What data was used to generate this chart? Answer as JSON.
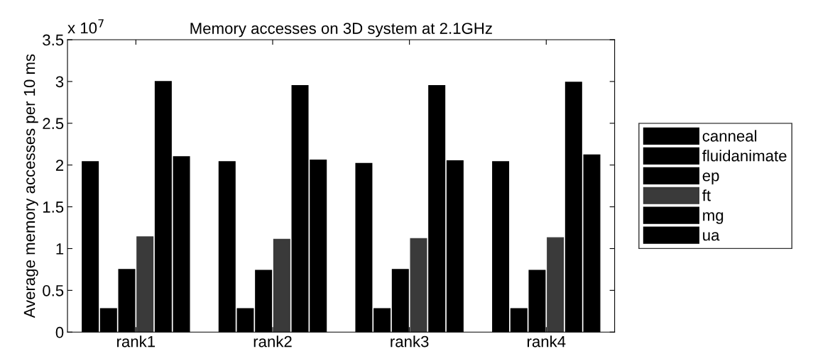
{
  "chart_data": {
    "type": "bar",
    "title": "Memory accesses on 3D system at 2.1GHz",
    "ylabel": "Average memory accesses per 10 ms",
    "annotations": [
      "x 10$^{7}$"
    ],
    "categories": [
      "rank1",
      "rank2",
      "rank3",
      "rank4"
    ],
    "series": [
      {
        "name": "canneal",
        "color": "#000000",
        "values": [
          2.04,
          2.04,
          2.02,
          2.04
        ]
      },
      {
        "name": "fluidanimate",
        "color": "#000000",
        "values": [
          0.28,
          0.28,
          0.28,
          0.28
        ]
      },
      {
        "name": "ep",
        "color": "#000000",
        "values": [
          0.75,
          0.74,
          0.75,
          0.74
        ]
      },
      {
        "name": "ft",
        "color": "#3a3a3a",
        "values": [
          1.14,
          1.11,
          1.12,
          1.13
        ]
      },
      {
        "name": "mg",
        "color": "#000000",
        "values": [
          3.0,
          2.95,
          2.95,
          2.99
        ]
      },
      {
        "name": "ua",
        "color": "#000000",
        "values": [
          2.1,
          2.06,
          2.05,
          2.12
        ]
      }
    ],
    "ylim": [
      0,
      3.5
    ],
    "yticks": [
      0,
      {
        "value": 0.5,
        "label": "0.5"
      },
      1,
      {
        "value": 1.5,
        "label": "1.5"
      },
      2,
      {
        "value": 2.5,
        "label": "2.5"
      },
      3,
      {
        "value": 3.5,
        "label": "3.5"
      }
    ],
    "grid": false,
    "legend": "right"
  }
}
